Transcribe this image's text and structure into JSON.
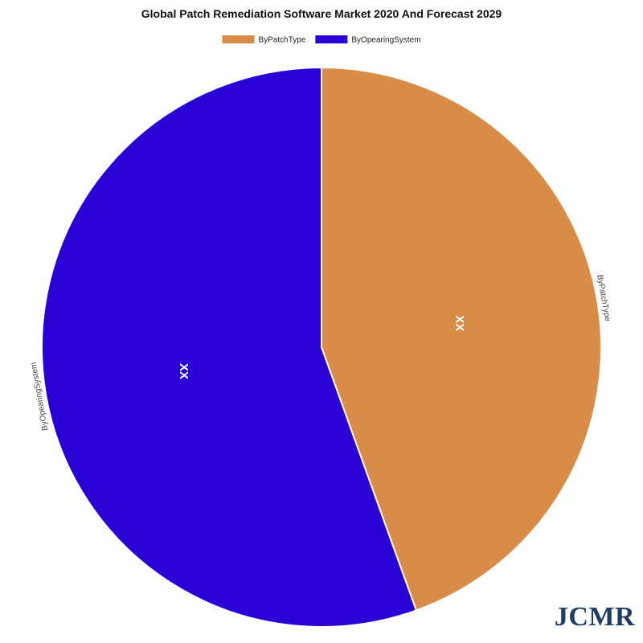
{
  "brand": {
    "logo_text": "JCMR",
    "logo_color": "#1f3d66"
  },
  "chart_data": {
    "type": "pie",
    "title": "Global Patch Remediation Software Market 2020 And Forecast 2029",
    "legend_position": "top",
    "slices": [
      {
        "label": "ByPatchType",
        "value": 44.5,
        "value_label": "XX",
        "color": "#d98b48"
      },
      {
        "label": "ByOpearingSystem",
        "value": 55.5,
        "value_label": "XX",
        "color": "#2a02d5"
      }
    ]
  }
}
